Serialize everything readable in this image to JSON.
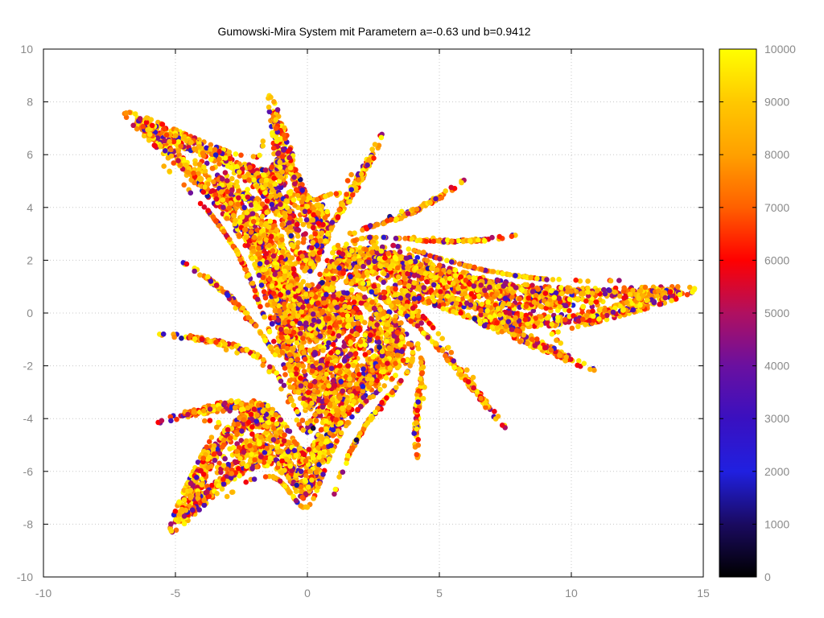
{
  "chart_data": {
    "type": "scatter",
    "title": "Gumowski-Mira System mit Parametern a=-0.63 und b=0.9412",
    "xlabel": "",
    "ylabel": "",
    "xlim": [
      -10,
      15
    ],
    "ylim": [
      -10,
      10
    ],
    "x_ticks": [
      "-10",
      "-5",
      "0",
      "5",
      "10",
      "15"
    ],
    "y_ticks": [
      "-10",
      "-8",
      "-6",
      "-4",
      "-2",
      "0",
      "2",
      "4",
      "6",
      "8",
      "10"
    ],
    "grid": true,
    "parameters": {
      "a": -0.63,
      "b": 0.9412
    },
    "iterations": 10000,
    "color_by": "iteration index",
    "colorbar": {
      "range": [
        0,
        10000
      ],
      "ticks": [
        "0",
        "1000",
        "2000",
        "3000",
        "4000",
        "5000",
        "6000",
        "7000",
        "8000",
        "9000",
        "10000"
      ],
      "colormap": [
        "#000000",
        "#1a0a60",
        "#2020e0",
        "#3a10c0",
        "#6a10a0",
        "#b01060",
        "#ff0000",
        "#ff6000",
        "#ffa000",
        "#ffc800",
        "#ffff00"
      ]
    }
  }
}
